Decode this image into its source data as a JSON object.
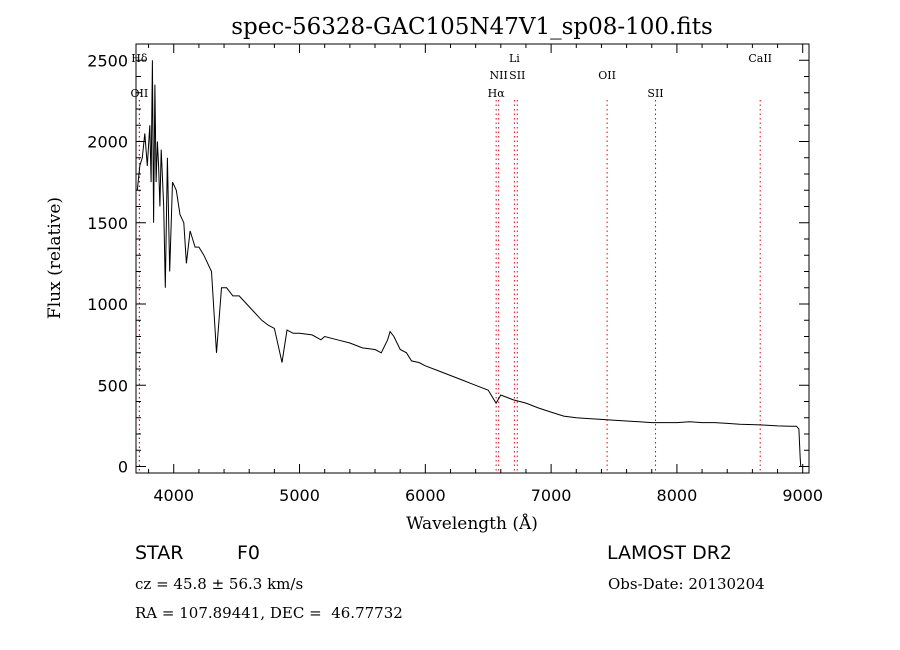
{
  "chart_data": {
    "type": "line",
    "title": "spec-56328-GAC105N47V1_sp08-100.fits",
    "xlabel": "Wavelength (Å)",
    "ylabel": "Flux (relative)",
    "xlim": [
      3700,
      9050
    ],
    "ylim": [
      -40,
      2600
    ],
    "xticks": [
      4000,
      5000,
      6000,
      7000,
      8000,
      9000
    ],
    "yticks": [
      0,
      500,
      1000,
      1500,
      2000,
      2500
    ],
    "grid": false,
    "line_color": "#000000",
    "marker_color": "#e8001c",
    "spectral_lines": [
      {
        "name": "Hδ",
        "wavelength": 3727,
        "row": 0
      },
      {
        "name": "OII",
        "wavelength": 3727,
        "row": 2
      },
      {
        "name": "Li",
        "wavelength": 6708,
        "row": 0
      },
      {
        "name": "NII",
        "wavelength": 6583,
        "row": 1
      },
      {
        "name": "SII",
        "wavelength": 6731,
        "row": 1
      },
      {
        "name": "Hα",
        "wavelength": 6563,
        "row": 2
      },
      {
        "name": "OII",
        "wavelength": 7445,
        "row": 1
      },
      {
        "name": "SII",
        "wavelength": 7830,
        "row": 2
      },
      {
        "name": "CaII",
        "wavelength": 8662,
        "row": 0
      }
    ],
    "series": [
      {
        "x": [
          3710,
          3730,
          3750,
          3770,
          3790,
          3810,
          3820,
          3830,
          3840,
          3850,
          3860,
          3870,
          3880,
          3890,
          3900,
          3920,
          3933,
          3950,
          3968,
          3990,
          4020,
          4050,
          4080,
          4101,
          4130,
          4170,
          4200,
          4240,
          4300,
          4340,
          4380,
          4420,
          4470,
          4520,
          4580,
          4640,
          4700,
          4750,
          4800,
          4861,
          4900,
          4950,
          5000,
          5100,
          5170,
          5200,
          5300,
          5400,
          5500,
          5600,
          5650,
          5700,
          5720,
          5750,
          5800,
          5850,
          5890,
          5950,
          6000,
          6100,
          6200,
          6300,
          6400,
          6500,
          6563,
          6600,
          6700,
          6800,
          6900,
          7000,
          7100,
          7200,
          7300,
          7400,
          7500,
          7600,
          7700,
          7800,
          7900,
          8000,
          8100,
          8200,
          8300,
          8400,
          8500,
          8600,
          8700,
          8800,
          8900,
          8950,
          8970,
          8980,
          8985
        ],
        "y": [
          1700,
          1850,
          1900,
          2050,
          1850,
          2100,
          1750,
          2500,
          1500,
          2350,
          1750,
          2000,
          1850,
          1600,
          1950,
          1600,
          1100,
          1900,
          1200,
          1750,
          1700,
          1550,
          1500,
          1250,
          1450,
          1350,
          1350,
          1300,
          1200,
          700,
          1100,
          1100,
          1050,
          1050,
          1000,
          950,
          900,
          870,
          850,
          640,
          840,
          820,
          820,
          810,
          780,
          800,
          780,
          760,
          730,
          720,
          700,
          780,
          830,
          800,
          720,
          700,
          650,
          640,
          620,
          590,
          560,
          530,
          500,
          470,
          390,
          440,
          410,
          390,
          360,
          335,
          310,
          300,
          295,
          290,
          285,
          280,
          275,
          270,
          270,
          270,
          275,
          270,
          270,
          265,
          260,
          258,
          255,
          250,
          248,
          248,
          230,
          50,
          0
        ]
      }
    ]
  },
  "info": {
    "object_class": "STAR",
    "subclass": "F0",
    "survey": "LAMOST DR2",
    "cz": "cz = 45.8 ± 56.3 km/s",
    "obs_date": "Obs-Date: 20130204",
    "coords": "RA = 107.89441, DEC =  46.77732"
  }
}
